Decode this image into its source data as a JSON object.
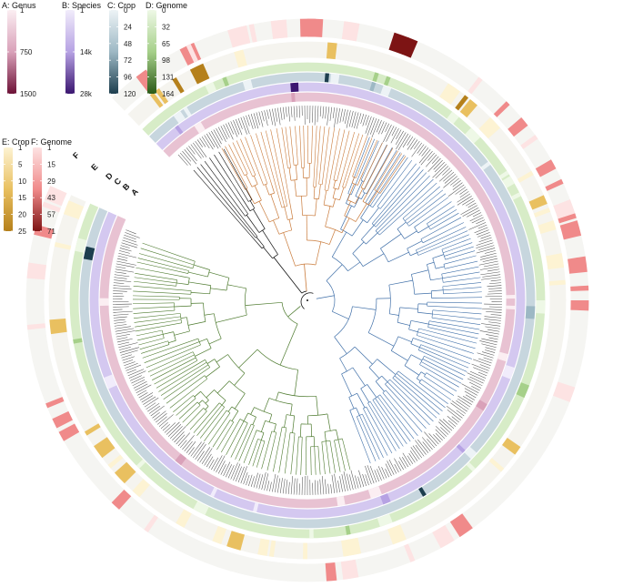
{
  "legends": [
    {
      "id": "A",
      "title": "A: Genus",
      "ticks": [
        "1",
        "750",
        "1500"
      ],
      "colors": [
        "#fbeef2",
        "#d9a1b9",
        "#6d1237"
      ]
    },
    {
      "id": "B",
      "title": "B: Species",
      "ticks": [
        "1",
        "14k",
        "28k"
      ],
      "colors": [
        "#f1ecfb",
        "#b6a2e3",
        "#3b1670"
      ]
    },
    {
      "id": "C",
      "title": "C: Crop",
      "ticks": [
        "0",
        "24",
        "48",
        "72",
        "96",
        "120"
      ],
      "colors": [
        "#edf3f6",
        "#9db8c4",
        "#1d3e4e"
      ]
    },
    {
      "id": "D",
      "title": "D: Genome",
      "ticks": [
        "0",
        "32",
        "65",
        "98",
        "131",
        "164"
      ],
      "colors": [
        "#eef8e6",
        "#a6d08a",
        "#2b5a17"
      ]
    },
    {
      "id": "E",
      "title": "E: Crop",
      "ticks": [
        "1",
        "5",
        "10",
        "15",
        "20",
        "25"
      ],
      "colors": [
        "#fdf3d3",
        "#e9c060",
        "#b5801b"
      ]
    },
    {
      "id": "F",
      "title": "F: Genome",
      "ticks": [
        "1",
        "15",
        "29",
        "43",
        "57",
        "71"
      ],
      "colors": [
        "#fde3e3",
        "#f08a8a",
        "#7d1414"
      ]
    }
  ],
  "rings": [
    "A",
    "B",
    "C",
    "D",
    "E",
    "F"
  ],
  "ring_colors": {
    "A": "#e8c2d2",
    "B": "#d4c8f0",
    "C": "#c7d6de",
    "D": "#d7ecc7",
    "E": "#f5f4ef",
    "F": "#f5f5f2"
  },
  "clade_colors": {
    "orange": "#c97a3a",
    "blue": "#3f6fa8",
    "green": "#4d7a2e",
    "black": "#111111"
  }
}
